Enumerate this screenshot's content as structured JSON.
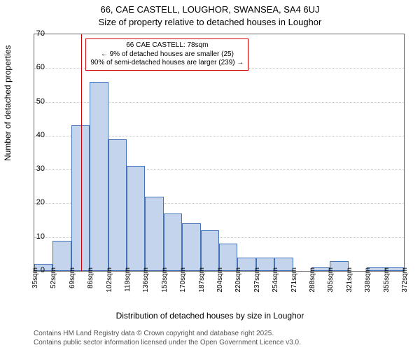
{
  "title_main": "66, CAE CASTELL, LOUGHOR, SWANSEA, SA4 6UJ",
  "title_sub": "Size of property relative to detached houses in Loughor",
  "ylabel": "Number of detached properties",
  "xlabel": "Distribution of detached houses by size in Loughor",
  "credits_line1": "Contains HM Land Registry data © Crown copyright and database right 2025.",
  "credits_line2": "Contains public sector information licensed under the Open Government Licence v3.0.",
  "annot_line1": "66 CAE CASTELL: 78sqm",
  "annot_line2": "← 9% of detached houses are smaller (25)",
  "annot_line3": "90% of semi-detached houses are larger (239) →",
  "chart": {
    "type": "histogram",
    "ylim": [
      0,
      70
    ],
    "ytick_step": 10,
    "xtick_labels": [
      "35sqm",
      "52sqm",
      "69sqm",
      "86sqm",
      "102sqm",
      "119sqm",
      "136sqm",
      "153sqm",
      "170sqm",
      "187sqm",
      "204sqm",
      "220sqm",
      "237sqm",
      "254sqm",
      "271sqm",
      "288sqm",
      "305sqm",
      "321sqm",
      "338sqm",
      "355sqm",
      "372sqm"
    ],
    "bar_values": [
      2,
      9,
      43,
      56,
      39,
      31,
      22,
      17,
      14,
      12,
      8,
      4,
      4,
      4,
      0,
      1,
      3,
      0,
      1,
      1
    ],
    "marker_value_sqm": 78,
    "x_range_sqm": [
      35,
      372
    ],
    "bar_fill": "#c4d4ed",
    "bar_stroke": "#4673b8",
    "grid_color": "#c8c8c8",
    "border_color": "#646464",
    "marker_color": "#d00000",
    "annot_border": "#d00000",
    "background": "#ffffff",
    "title_fontsize": 13,
    "label_fontsize": 12,
    "tick_fontsize": 11,
    "xtick_fontsize": 10,
    "annot_fontsize": 10
  }
}
